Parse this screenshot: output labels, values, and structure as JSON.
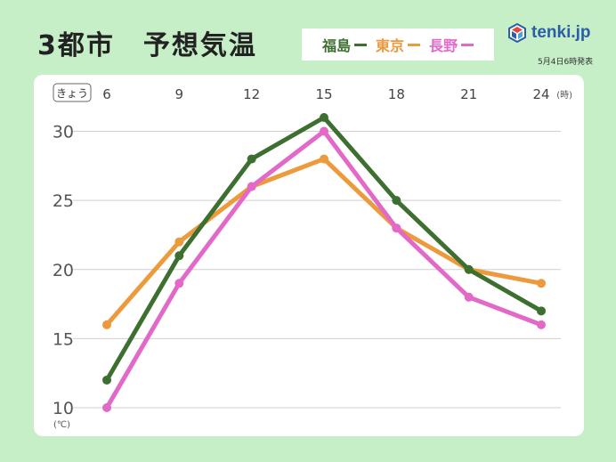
{
  "title": "3都市　予想気温",
  "brand": {
    "name": "tenki.jp",
    "date": "5月4日6時発表"
  },
  "chart_data": {
    "type": "line",
    "day_label": "きょう",
    "x_unit": "(時)",
    "y_unit": "(℃)",
    "x": [
      6,
      9,
      12,
      15,
      18,
      21,
      24
    ],
    "x_tick_labels": [
      "6",
      "9",
      "12",
      "15",
      "18",
      "21",
      "24"
    ],
    "y_ticks": [
      10,
      15,
      20,
      25,
      30
    ],
    "ylim": [
      10,
      31
    ],
    "grid": true,
    "legend_position": "top",
    "series": [
      {
        "name": "福島",
        "color": "#3d7030",
        "values": [
          12,
          21,
          28,
          31,
          25,
          20,
          17
        ]
      },
      {
        "name": "東京",
        "color": "#ec9a3c",
        "values": [
          16,
          22,
          26,
          28,
          23,
          20,
          19
        ]
      },
      {
        "name": "長野",
        "color": "#e369c8",
        "values": [
          10,
          19,
          26,
          30,
          23,
          18,
          16
        ]
      }
    ],
    "draw_order": [
      "東京",
      "長野",
      "福島"
    ]
  }
}
